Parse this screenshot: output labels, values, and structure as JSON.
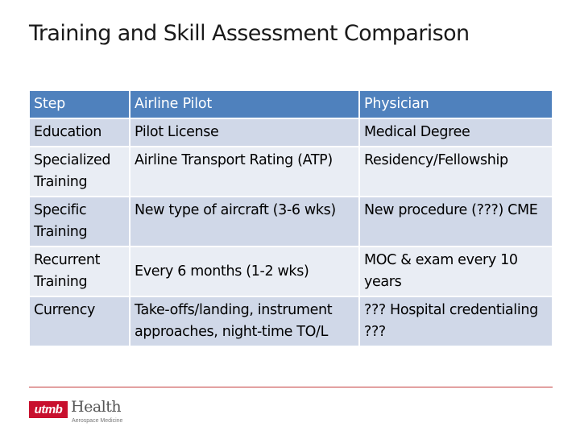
{
  "slide": {
    "title": "Training and Skill Assessment Comparison"
  },
  "table": {
    "headers": [
      "Step",
      "Airline Pilot",
      "Physician"
    ],
    "rows": [
      [
        "Education",
        "Pilot License",
        "Medical Degree"
      ],
      [
        "Specialized Training",
        "Airline Transport Rating (ATP)",
        "Residency/Fellowship"
      ],
      [
        "Specific Training",
        "New type of aircraft (3-6 wks)",
        "New procedure (???) CME"
      ],
      [
        "Recurrent Training",
        "Every 6 months (1-2 wks)",
        "MOC & exam every 10 years"
      ],
      [
        "Currency",
        "Take-offs/landing, instrument approaches, night-time TO/L",
        "??? Hospital credentialing ???"
      ]
    ]
  },
  "footer": {
    "logo_mark": "utmb",
    "logo_word": "Health",
    "logo_sub": "Aerospace Medicine"
  },
  "colors": {
    "header_fill": "#4f81bd",
    "row_fill_odd": "#d0d8e8",
    "row_fill_even": "#e9edf4",
    "footer_rule": "#c43a3a",
    "brand_red": "#c8102e"
  }
}
